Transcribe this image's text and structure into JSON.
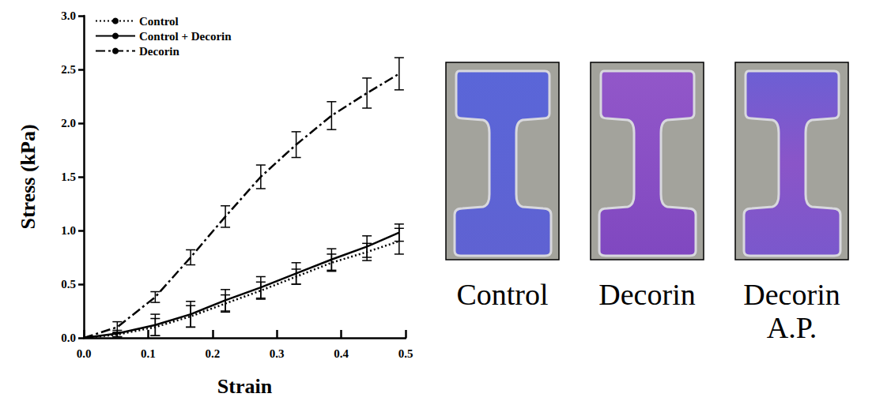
{
  "chart_data": {
    "type": "line",
    "x_label": "Strain",
    "y_label": "Stress (kPa)",
    "x": [
      0,
      0.052,
      0.111,
      0.166,
      0.22,
      0.275,
      0.33,
      0.385,
      0.44,
      0.49
    ],
    "xlim": [
      0,
      0.5
    ],
    "xticks": [
      {
        "value": 0,
        "label": "0.0"
      },
      0.1,
      0.2,
      0.3,
      0.4,
      0.5
    ],
    "ylim": [
      0,
      3
    ],
    "yticks": [
      {
        "value": 0,
        "label": "0.0"
      },
      0.5,
      {
        "value": 1,
        "label": "1.0"
      },
      1.5,
      {
        "value": 2,
        "label": "2.0"
      },
      2.5,
      {
        "value": 3,
        "label": "3.0"
      }
    ],
    "grid": false,
    "legend": "upper left",
    "series": [
      {
        "name": "Control",
        "color": "#000000",
        "line_style": "dotted",
        "values": [
          0,
          0.03,
          0.1,
          0.2,
          0.32,
          0.44,
          0.57,
          0.7,
          0.8,
          0.9
        ],
        "errors": [
          null,
          0.02,
          0.08,
          0.1,
          0.08,
          0.08,
          0.07,
          0.08,
          0.08,
          0.12
        ]
      },
      {
        "name": "Control + Decorin",
        "color": "#000000",
        "line_style": "solid",
        "values": [
          0,
          0.04,
          0.12,
          0.22,
          0.35,
          0.47,
          0.6,
          0.73,
          0.85,
          0.98
        ],
        "errors": [
          null,
          0.03,
          0.1,
          0.12,
          0.1,
          0.1,
          0.1,
          0.1,
          0.1,
          0.08
        ]
      },
      {
        "name": "Decorin",
        "color": "#000000",
        "line_style": "dashdot",
        "values": [
          0,
          0.1,
          0.38,
          0.75,
          1.13,
          1.5,
          1.8,
          2.07,
          2.28,
          2.46
        ],
        "errors": [
          null,
          0.05,
          0.05,
          0.07,
          0.1,
          0.11,
          0.12,
          0.13,
          0.14,
          0.15
        ]
      }
    ]
  },
  "photos": [
    {
      "caption": "Control"
    },
    {
      "caption": "Decorin"
    },
    {
      "caption": "Decorin A.P."
    }
  ]
}
